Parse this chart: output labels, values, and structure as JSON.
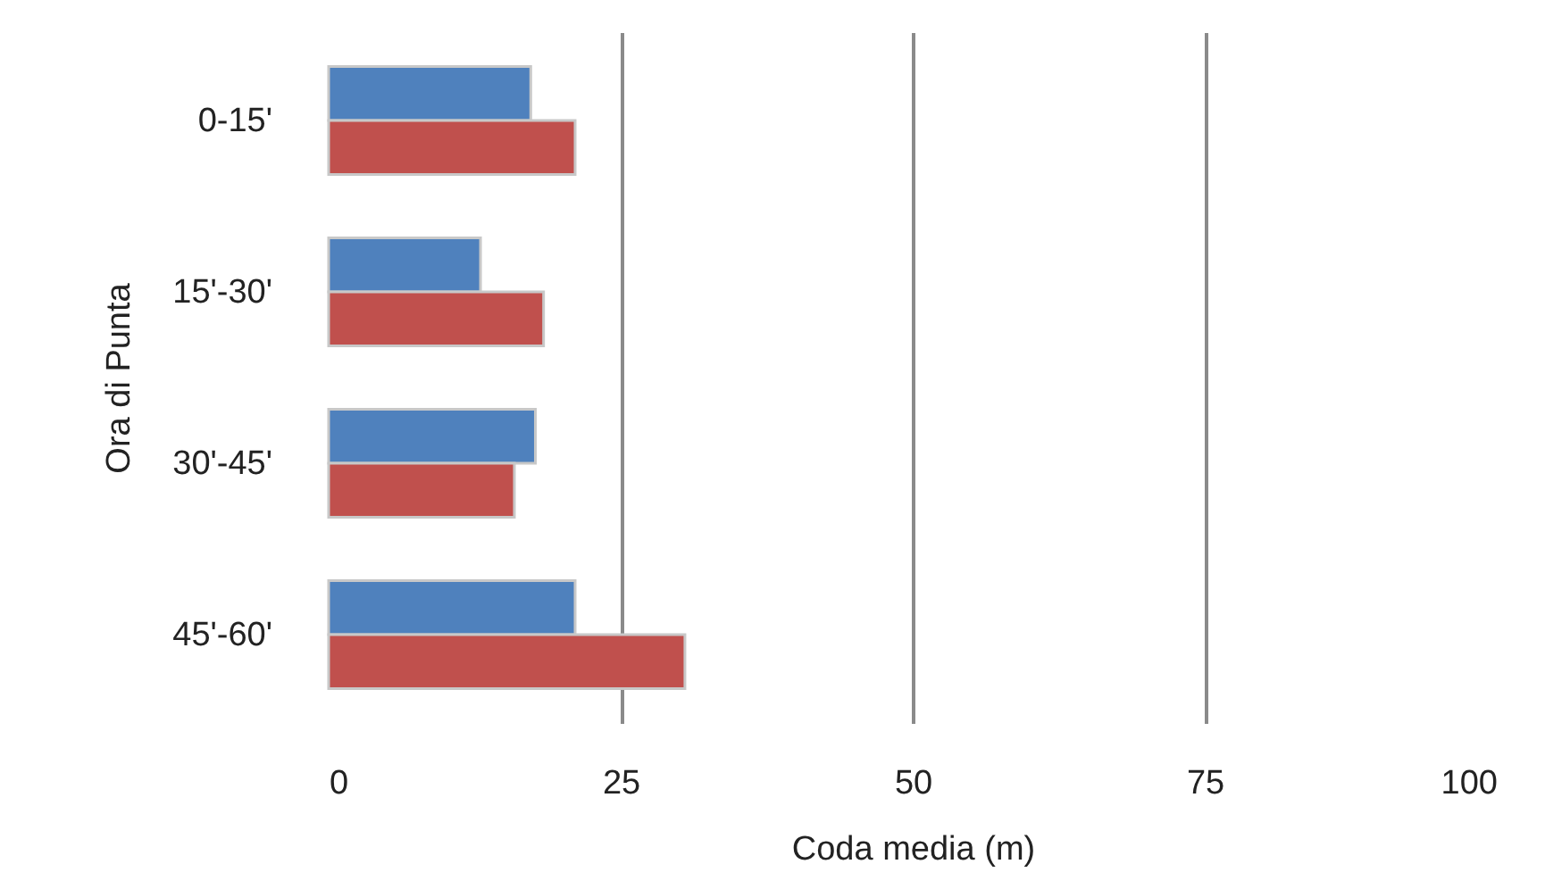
{
  "chart_data": {
    "type": "bar",
    "orientation": "horizontal",
    "xlabel": "Coda media (m)",
    "ylabel": "Ora di Punta",
    "categories": [
      "0-15'",
      "15'-30'",
      "30'-45'",
      "45'-60'"
    ],
    "series": [
      {
        "color": "#4f81bd",
        "values": [
          17.3,
          13.0,
          17.7,
          21.1
        ]
      },
      {
        "color": "#c0504d",
        "values": [
          21.1,
          18.4,
          15.9,
          30.5
        ]
      }
    ],
    "xlim": [
      0,
      100
    ],
    "xticks": [
      0,
      25,
      50,
      75,
      100
    ],
    "grid": "x"
  }
}
